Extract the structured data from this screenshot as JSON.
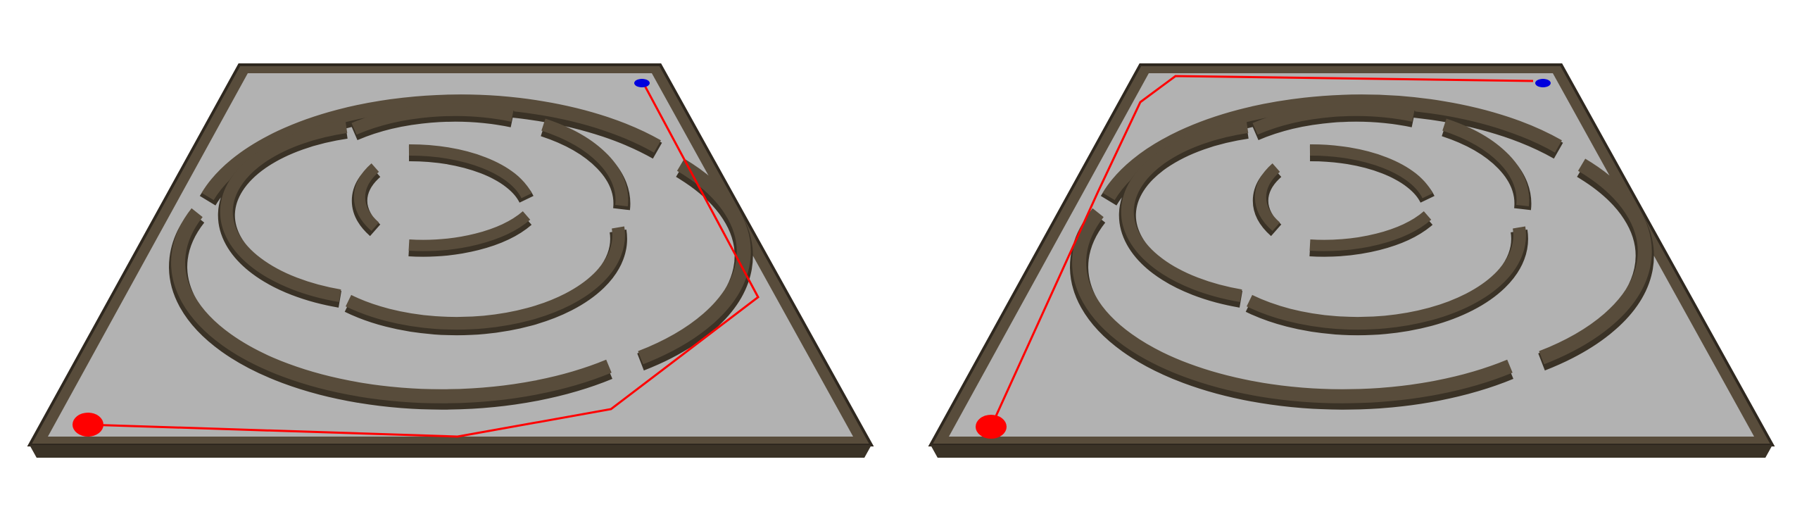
{
  "scene": {
    "colors": {
      "background": "#ffffff",
      "floor": "#b2b2b2",
      "wall_top": "#584c3b",
      "wall_side": "#3a3226",
      "path": "#ff0000",
      "start_marker": "#ff0000",
      "goal_marker": "#0000dd"
    },
    "panels": [
      {
        "id": "left",
        "path_variant": "around-right-side"
      },
      {
        "id": "right",
        "path_variant": "around-left-side"
      }
    ]
  }
}
